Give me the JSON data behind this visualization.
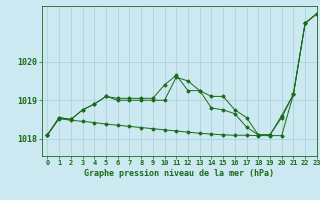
{
  "background_color": "#cce8f0",
  "grid_color": "#aacfdb",
  "line_color": "#1a6b1a",
  "xlabel": "Graphe pression niveau de la mer (hPa)",
  "xlim": [
    -0.5,
    23
  ],
  "ylim": [
    1017.55,
    1021.45
  ],
  "yticks": [
    1018,
    1019,
    1020
  ],
  "xticks": [
    0,
    1,
    2,
    3,
    4,
    5,
    6,
    7,
    8,
    9,
    10,
    11,
    12,
    13,
    14,
    15,
    16,
    17,
    18,
    19,
    20,
    21,
    22,
    23
  ],
  "line1": [
    1018.1,
    1018.55,
    1018.5,
    1018.75,
    1018.9,
    1019.1,
    1019.0,
    1019.0,
    1019.0,
    1019.0,
    1019.0,
    1019.6,
    1019.5,
    1019.25,
    1019.1,
    1019.1,
    1018.75,
    1018.55,
    1018.1,
    1018.1,
    1018.55,
    1019.15,
    1021.0,
    1021.25
  ],
  "line2": [
    1018.1,
    1018.55,
    1018.5,
    1018.75,
    1018.9,
    1019.1,
    1019.05,
    1019.05,
    1019.05,
    1019.05,
    1019.4,
    1019.65,
    1019.25,
    1019.25,
    1018.8,
    1018.75,
    1018.65,
    1018.3,
    1018.1,
    1018.1,
    1018.6,
    1019.15,
    1021.0,
    1021.25
  ],
  "line3": [
    1018.1,
    1018.52,
    1018.48,
    1018.45,
    1018.42,
    1018.38,
    1018.35,
    1018.32,
    1018.29,
    1018.26,
    1018.23,
    1018.2,
    1018.17,
    1018.14,
    1018.12,
    1018.1,
    1018.09,
    1018.09,
    1018.08,
    1018.08,
    1018.08,
    1019.15,
    1021.0,
    1021.25
  ],
  "title_fontsize": 6,
  "tick_fontsize": 5,
  "xlabel_fontsize": 6
}
